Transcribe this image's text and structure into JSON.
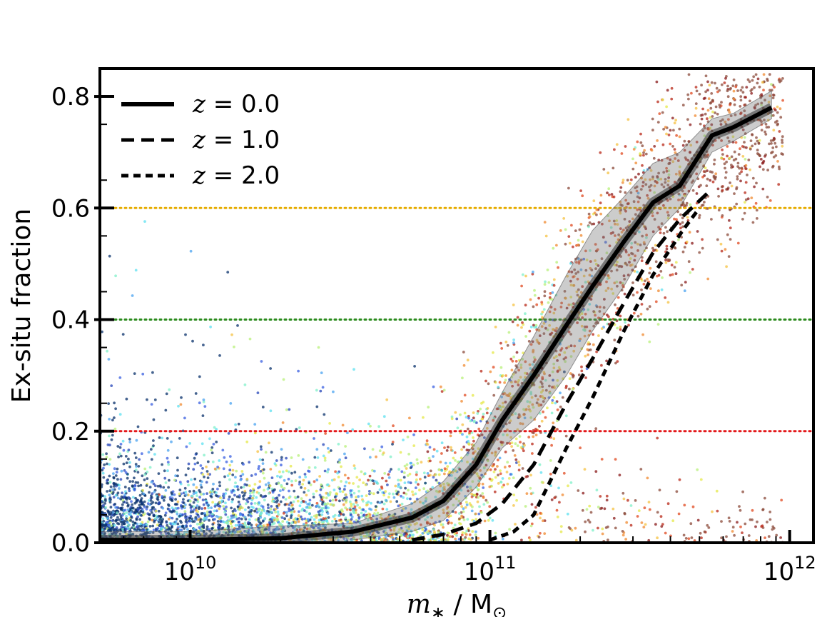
{
  "chart_data": {
    "type": "scatter",
    "xscale": "log",
    "xlim": [
      5000000000.0,
      1200000000000.0
    ],
    "ylim": [
      0.0,
      0.85
    ],
    "ylabel": "Ex-situ fraction",
    "xlabel_symbol": "m",
    "xlabel_sub": "∗",
    "xlabel_unit": "M",
    "xlabel_unit_sub": "⊙",
    "x_ticks": [
      {
        "value": 10000000000.0,
        "base": "10",
        "exp": "10"
      },
      {
        "value": 100000000000.0,
        "base": "10",
        "exp": "11"
      },
      {
        "value": 1000000000000.0,
        "base": "10",
        "exp": "12"
      }
    ],
    "y_ticks": [
      {
        "value": 0.0,
        "label": "0.0"
      },
      {
        "value": 0.2,
        "label": "0.2"
      },
      {
        "value": 0.4,
        "label": "0.4"
      },
      {
        "value": 0.6,
        "label": "0.6"
      },
      {
        "value": 0.8,
        "label": "0.8"
      }
    ],
    "reference_lines": [
      {
        "y": 0.6,
        "color": "#e6ac00",
        "style": "dotted"
      },
      {
        "y": 0.4,
        "color": "#2a8a1c",
        "style": "dotted"
      },
      {
        "y": 0.2,
        "color": "#e41a1c",
        "style": "dotted"
      }
    ],
    "band": {
      "x": [
        5000000000.0,
        10000000000.0,
        20000000000.0,
        35000000000.0,
        55000000000.0,
        70000000000.0,
        90000000000.0,
        110000000000.0,
        140000000000.0,
        180000000000.0,
        220000000000.0,
        280000000000.0,
        350000000000.0,
        430000000000.0,
        550000000000.0,
        650000000000.0,
        870000000000.0
      ],
      "lower": [
        0.0,
        0.0,
        0.0,
        0.005,
        0.02,
        0.04,
        0.1,
        0.17,
        0.22,
        0.3,
        0.38,
        0.46,
        0.55,
        0.6,
        0.7,
        0.72,
        0.76
      ],
      "upper": [
        0.02,
        0.02,
        0.03,
        0.035,
        0.07,
        0.11,
        0.18,
        0.27,
        0.37,
        0.48,
        0.56,
        0.62,
        0.68,
        0.7,
        0.76,
        0.77,
        0.81
      ]
    },
    "series": [
      {
        "name": "z = 0.0",
        "legend_var": "z",
        "legend_value": "= 0.0",
        "style": "solid",
        "x": [
          5000000000.0,
          10000000000.0,
          20000000000.0,
          35000000000.0,
          55000000000.0,
          70000000000.0,
          90000000000.0,
          110000000000.0,
          140000000000.0,
          180000000000.0,
          220000000000.0,
          280000000000.0,
          350000000000.0,
          430000000000.0,
          550000000000.0,
          650000000000.0,
          870000000000.0
        ],
        "y": [
          0.005,
          0.005,
          0.008,
          0.02,
          0.045,
          0.075,
          0.14,
          0.22,
          0.3,
          0.39,
          0.46,
          0.54,
          0.61,
          0.64,
          0.73,
          0.745,
          0.78
        ]
      },
      {
        "name": "z = 1.0",
        "legend_var": "z",
        "legend_value": "= 1.0",
        "style": "dashed",
        "x": [
          55000000000.0,
          70000000000.0,
          90000000000.0,
          110000000000.0,
          140000000000.0,
          180000000000.0,
          220000000000.0,
          280000000000.0,
          350000000000.0,
          430000000000.0,
          540000000000.0
        ],
        "y": [
          0.005,
          0.015,
          0.035,
          0.07,
          0.14,
          0.25,
          0.33,
          0.43,
          0.52,
          0.58,
          0.63
        ]
      },
      {
        "name": "z = 2.0",
        "legend_var": "z",
        "legend_value": "= 2.0",
        "style": "short-dashed",
        "x": [
          100000000000.0,
          120000000000.0,
          140000000000.0,
          180000000000.0,
          220000000000.0,
          280000000000.0,
          350000000000.0,
          440000000000.0,
          500000000000.0
        ],
        "y": [
          0.005,
          0.02,
          0.05,
          0.17,
          0.26,
          0.38,
          0.48,
          0.56,
          0.6
        ]
      }
    ],
    "scatter_colors": [
      "#08306b",
      "#2444b8",
      "#3a5fe0",
      "#4aa3f0",
      "#5ee0f0",
      "#7ff0c8",
      "#b8f07a",
      "#e6e84a",
      "#f5c242",
      "#f08a30",
      "#e04a20",
      "#b82818",
      "#8a1a1a",
      "#8b4a3a"
    ]
  }
}
